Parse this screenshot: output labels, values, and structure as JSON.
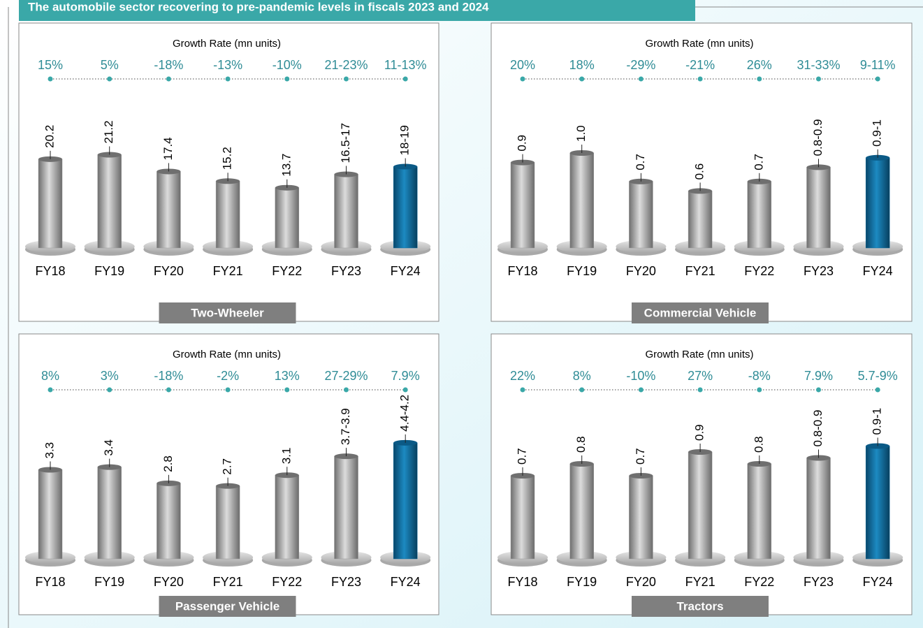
{
  "header": {
    "title": "The automobile sector recovering to pre-pandemic levels in fiscals 2023 and 2024"
  },
  "chart_data": [
    {
      "type": "bar",
      "title": "Two-Wheeler",
      "subtitle": "Growth Rate (mn units)",
      "categories": [
        "FY18",
        "FY19",
        "FY20",
        "FY21",
        "FY22",
        "FY23",
        "FY24"
      ],
      "growth_labels": [
        "15%",
        "5%",
        "-18%",
        "-13%",
        "-10%",
        "21-23%",
        "11-13%"
      ],
      "values": [
        20.2,
        21.2,
        17.4,
        15.2,
        13.7,
        16.75,
        18.5
      ],
      "value_labels": [
        "20.2",
        "21.2",
        "17.4",
        "15.2",
        "13.7",
        "16.5-17",
        "18-19"
      ],
      "colors": [
        "#9a9a9a",
        "#9a9a9a",
        "#9a9a9a",
        "#9a9a9a",
        "#9a9a9a",
        "#9a9a9a",
        "#0f6a9c"
      ],
      "ylim": [
        0,
        27
      ]
    },
    {
      "type": "bar",
      "title": "Commercial Vehicle",
      "subtitle": "Growth Rate (mn units)",
      "categories": [
        "FY18",
        "FY19",
        "FY20",
        "FY21",
        "FY22",
        "FY23",
        "FY24"
      ],
      "growth_labels": [
        "20%",
        "18%",
        "-29%",
        "-21%",
        "26%",
        "31-33%",
        "9-11%"
      ],
      "values": [
        0.9,
        1.0,
        0.7,
        0.6,
        0.7,
        0.85,
        0.95
      ],
      "value_labels": [
        "0.9",
        "1.0",
        "0.7",
        "0.6",
        "0.7",
        "0.8-0.9",
        "0.9-1"
      ],
      "colors": [
        "#9a9a9a",
        "#9a9a9a",
        "#9a9a9a",
        "#9a9a9a",
        "#9a9a9a",
        "#9a9a9a",
        "#0f6a9c"
      ],
      "ylim": [
        0,
        1.25
      ]
    },
    {
      "type": "bar",
      "title": "Passenger Vehicle",
      "subtitle": "Growth Rate (mn units)",
      "categories": [
        "FY18",
        "FY19",
        "FY20",
        "FY21",
        "FY22",
        "FY23",
        "FY24"
      ],
      "growth_labels": [
        "8%",
        "3%",
        "-18%",
        "-2%",
        "13%",
        "27-29%",
        "7.9%"
      ],
      "values": [
        3.3,
        3.4,
        2.8,
        2.7,
        3.1,
        3.8,
        4.3
      ],
      "value_labels": [
        "3.3",
        "3.4",
        "2.8",
        "2.7",
        "3.1",
        "3.7-3.9",
        "4.4-4.2"
      ],
      "colors": [
        "#9a9a9a",
        "#9a9a9a",
        "#9a9a9a",
        "#9a9a9a",
        "#9a9a9a",
        "#9a9a9a",
        "#0f6a9c"
      ],
      "ylim": [
        0,
        4.4
      ]
    },
    {
      "type": "bar",
      "title": "Tractors",
      "subtitle": "Growth Rate (mn units)",
      "categories": [
        "FY18",
        "FY19",
        "FY20",
        "FY21",
        "FY22",
        "FY23",
        "FY24"
      ],
      "growth_labels": [
        "22%",
        "8%",
        "-10%",
        "27%",
        "-8%",
        "7.9%",
        "5.7-9%"
      ],
      "values": [
        0.7,
        0.8,
        0.7,
        0.9,
        0.8,
        0.85,
        0.95
      ],
      "value_labels": [
        "0.7",
        "0.8",
        "0.7",
        "0.9",
        "0.8",
        "0.8-0.9",
        "0.9-1"
      ],
      "colors": [
        "#9a9a9a",
        "#9a9a9a",
        "#9a9a9a",
        "#9a9a9a",
        "#9a9a9a",
        "#9a9a9a",
        "#0f6a9c"
      ],
      "ylim": [
        0,
        1.0
      ]
    }
  ]
}
